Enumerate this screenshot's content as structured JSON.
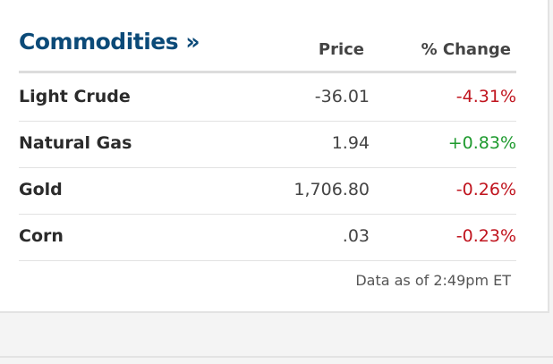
{
  "header": {
    "title": "Commodities »",
    "columns": [
      "Price",
      "% Change"
    ]
  },
  "table": {
    "rows": [
      {
        "name": "Light Crude",
        "price": "-36.01",
        "change": "-4.31%",
        "color": "#c0141e"
      },
      {
        "name": "Natural Gas",
        "price": "1.94",
        "change": "+0.83%",
        "color": "#1e9a2e"
      },
      {
        "name": "Gold",
        "price": "1,706.80",
        "change": "-0.26%",
        "color": "#c0141e"
      },
      {
        "name": "Corn",
        "price": ".03",
        "change": "-0.23%",
        "color": "#c0141e"
      }
    ]
  },
  "footer": {
    "note": "Data as of 2:49pm ET"
  }
}
